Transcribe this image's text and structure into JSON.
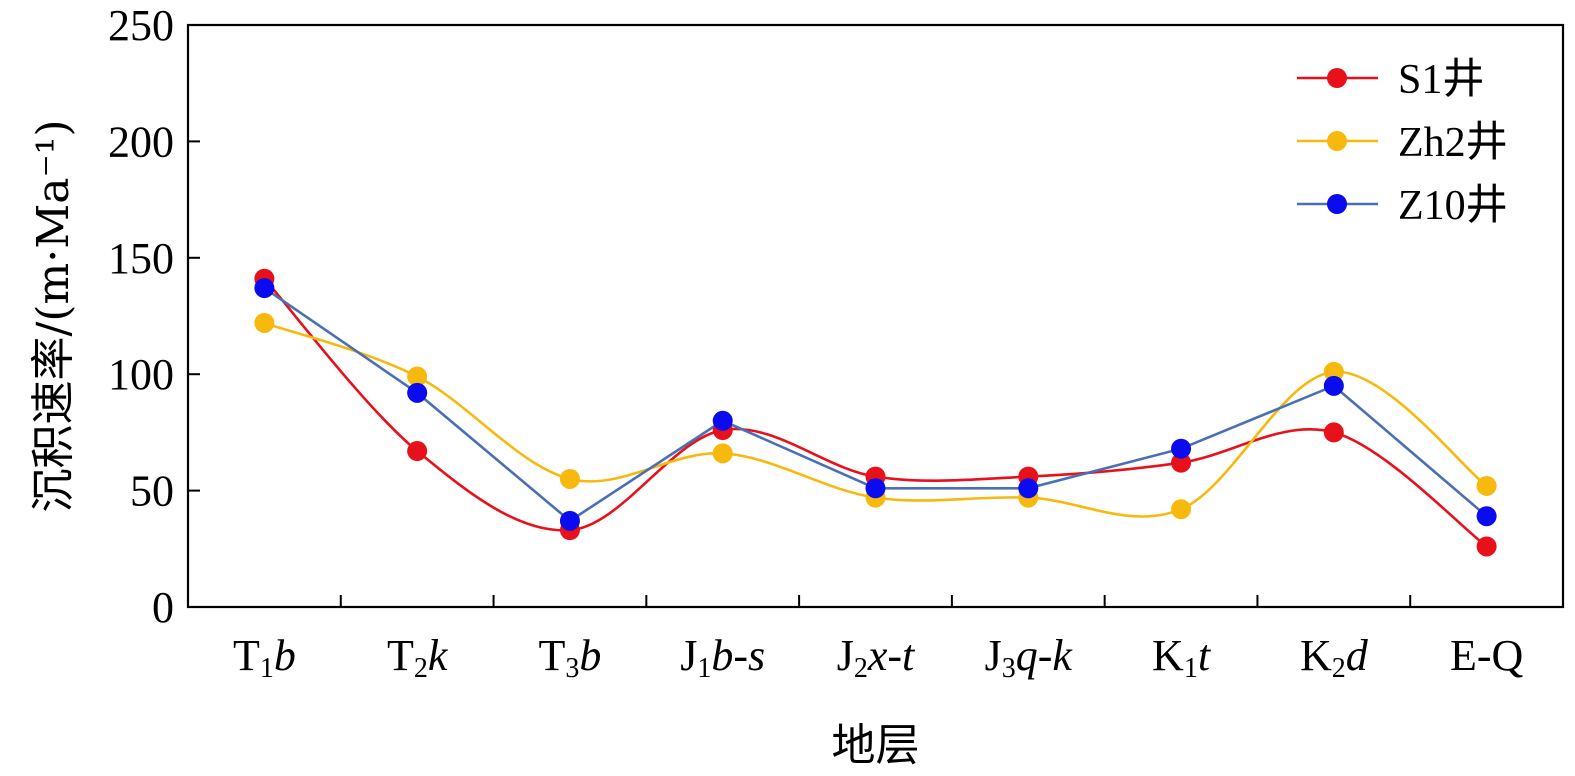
{
  "chart_data": {
    "type": "line",
    "title": "",
    "xlabel": "地层",
    "ylabel": "沉积速率/(m·Ma⁻¹)",
    "ylim": [
      0,
      250
    ],
    "yticks": [
      "0",
      "50",
      "100",
      "150",
      "200",
      "250"
    ],
    "categories": [
      {
        "base": "T",
        "sub": "1",
        "suffix": "b"
      },
      {
        "base": "T",
        "sub": "2",
        "suffix": "k"
      },
      {
        "base": "T",
        "sub": "3",
        "suffix": "b"
      },
      {
        "base": "J",
        "sub": "1",
        "suffix": "b-s"
      },
      {
        "base": "J",
        "sub": "2",
        "suffix": "x-t"
      },
      {
        "base": "J",
        "sub": "3",
        "suffix": "q-k"
      },
      {
        "base": "K",
        "sub": "1",
        "suffix": "t"
      },
      {
        "base": "K",
        "sub": "2",
        "suffix": "d"
      },
      {
        "base": "E-Q",
        "sub": "",
        "suffix": ""
      }
    ],
    "legend_position": "top-right",
    "grid": false,
    "series": [
      {
        "name": "S1井",
        "color": "#e8101a",
        "smooth": true,
        "values": [
          141,
          67,
          33,
          76,
          56,
          56,
          62,
          75,
          26
        ]
      },
      {
        "name": "Zh2井",
        "color": "#f7b90d",
        "smooth": true,
        "values": [
          122,
          99,
          55,
          66,
          47,
          47,
          42,
          101,
          52
        ]
      },
      {
        "name": "Z10井",
        "color": "#4a6fb5",
        "marker_color": "#0b0bef",
        "smooth": false,
        "values": [
          137,
          92,
          37,
          80,
          51,
          51,
          68,
          95,
          39
        ]
      }
    ]
  }
}
